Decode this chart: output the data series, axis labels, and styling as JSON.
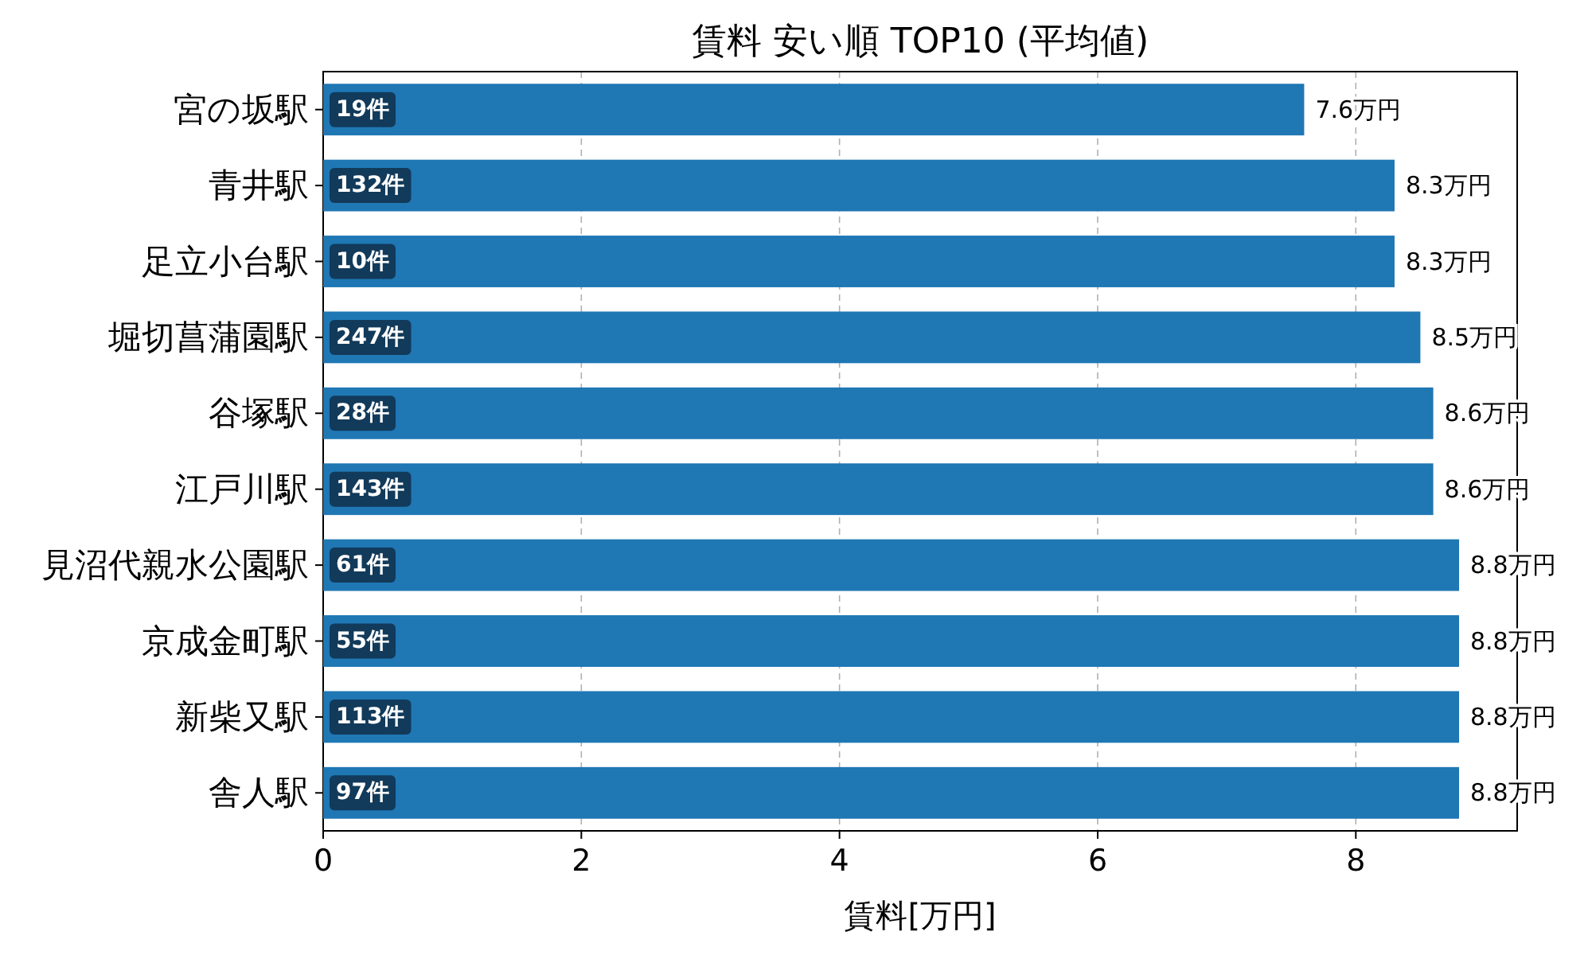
{
  "chart_data": {
    "type": "bar",
    "orientation": "horizontal",
    "title": "賃料 安い順 TOP10 (平均値)",
    "xlabel": "賃料[万円]",
    "categories": [
      "宮の坂駅",
      "青井駅",
      "足立小台駅",
      "堀切菖蒲園駅",
      "谷塚駅",
      "江戸川駅",
      "見沼代親水公園駅",
      "京成金町駅",
      "新柴又駅",
      "舎人駅"
    ],
    "values": [
      7.6,
      8.3,
      8.3,
      8.5,
      8.6,
      8.6,
      8.8,
      8.8,
      8.8,
      8.8
    ],
    "value_labels": [
      "7.6万円",
      "8.3万円",
      "8.3万円",
      "8.5万円",
      "8.6万円",
      "8.6万円",
      "8.8万円",
      "8.8万円",
      "8.8万円",
      "8.8万円"
    ],
    "color": "#1f77b4",
    "xlim": [
      0,
      9.25
    ],
    "xticks": [
      0,
      2,
      4,
      6,
      8
    ],
    "grid": "x",
    "annotations": [
      {
        "text": "19件",
        "y": "宮の坂駅"
      },
      {
        "text": "132件",
        "y": "青井駅"
      },
      {
        "text": "10件",
        "y": "足立小台駅"
      },
      {
        "text": "247件",
        "y": "堀切菖蒲園駅"
      },
      {
        "text": "28件",
        "y": "谷塚駅"
      },
      {
        "text": "143件",
        "y": "江戸川駅"
      },
      {
        "text": "61件",
        "y": "見沼代親水公園駅"
      },
      {
        "text": "55件",
        "y": "京成金町駅"
      },
      {
        "text": "113件",
        "y": "新柴又駅"
      },
      {
        "text": "97件",
        "y": "舎人駅"
      }
    ]
  }
}
